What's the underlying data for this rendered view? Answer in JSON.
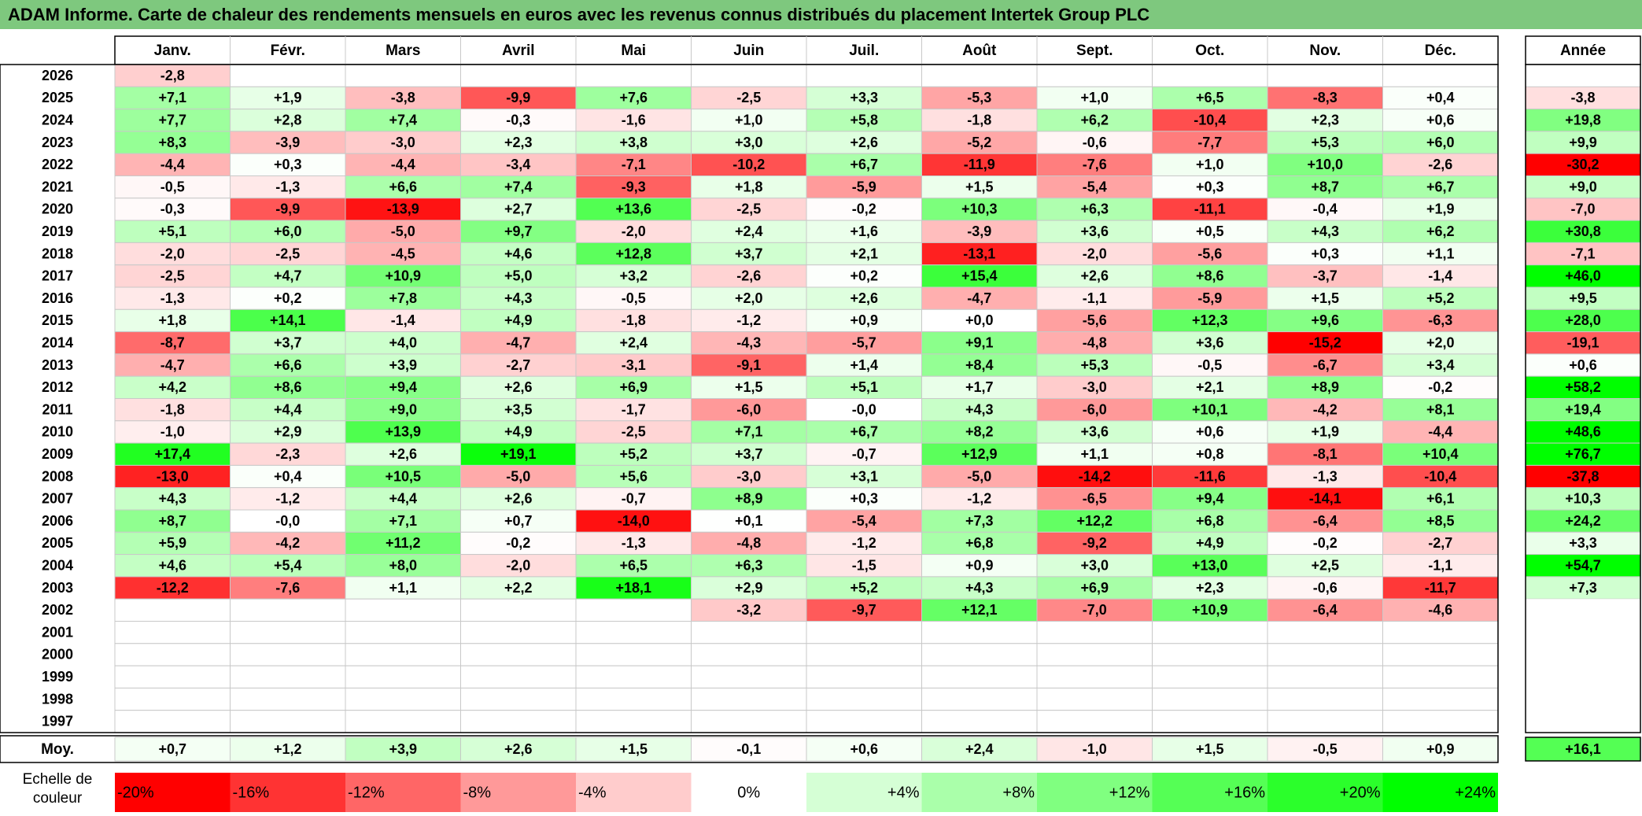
{
  "title": "ADAM Informe. Carte de chaleur des rendements mensuels en euros avec les revenus connus distribués du placement Intertek Group PLC",
  "chart_data": {
    "type": "heatmap",
    "title": "ADAM Informe. Carte de chaleur des rendements mensuels en euros avec les revenus connus distribués du placement Intertek Group PLC",
    "months": [
      "Janv.",
      "Févr.",
      "Mars",
      "Avril",
      "Mai",
      "Juin",
      "Juil.",
      "Août",
      "Sept.",
      "Oct.",
      "Nov.",
      "Déc."
    ],
    "year_header": "Année",
    "rows": [
      {
        "year": "2026",
        "values": [
          "-2,8",
          "",
          "",
          "",
          "",
          "",
          "",
          "",
          "",
          "",
          "",
          ""
        ],
        "annual": ""
      },
      {
        "year": "2025",
        "values": [
          "+7,1",
          "+1,9",
          "-3,8",
          "-9,9",
          "+7,6",
          "-2,5",
          "+3,3",
          "-5,3",
          "+1,0",
          "+6,5",
          "-8,3",
          "+0,4"
        ],
        "annual": "-3,8"
      },
      {
        "year": "2024",
        "values": [
          "+7,7",
          "+2,8",
          "+7,4",
          "-0,3",
          "-1,6",
          "+1,0",
          "+5,8",
          "-1,8",
          "+6,2",
          "-10,4",
          "+2,3",
          "+0,6"
        ],
        "annual": "+19,8"
      },
      {
        "year": "2023",
        "values": [
          "+8,3",
          "-3,9",
          "-3,0",
          "+2,3",
          "+3,8",
          "+3,0",
          "+2,6",
          "-5,2",
          "-0,6",
          "-7,7",
          "+5,3",
          "+6,0"
        ],
        "annual": "+9,9"
      },
      {
        "year": "2022",
        "values": [
          "-4,4",
          "+0,3",
          "-4,4",
          "-3,4",
          "-7,1",
          "-10,2",
          "+6,7",
          "-11,9",
          "-7,6",
          "+1,0",
          "+10,0",
          "-2,6"
        ],
        "annual": "-30,2"
      },
      {
        "year": "2021",
        "values": [
          "-0,5",
          "-1,3",
          "+6,6",
          "+7,4",
          "-9,3",
          "+1,8",
          "-5,9",
          "+1,5",
          "-5,4",
          "+0,3",
          "+8,7",
          "+6,7"
        ],
        "annual": "+9,0"
      },
      {
        "year": "2020",
        "values": [
          "-0,3",
          "-9,9",
          "-13,9",
          "+2,7",
          "+13,6",
          "-2,5",
          "-0,2",
          "+10,3",
          "+6,3",
          "-11,1",
          "-0,4",
          "+1,9"
        ],
        "annual": "-7,0"
      },
      {
        "year": "2019",
        "values": [
          "+5,1",
          "+6,0",
          "-5,0",
          "+9,7",
          "-2,0",
          "+2,4",
          "+1,6",
          "-3,9",
          "+3,6",
          "+0,5",
          "+4,3",
          "+6,2"
        ],
        "annual": "+30,8"
      },
      {
        "year": "2018",
        "values": [
          "-2,0",
          "-2,5",
          "-4,5",
          "+4,6",
          "+12,8",
          "+3,7",
          "+2,1",
          "-13,1",
          "-2,0",
          "-5,6",
          "+0,3",
          "+1,1"
        ],
        "annual": "-7,1"
      },
      {
        "year": "2017",
        "values": [
          "-2,5",
          "+4,7",
          "+10,9",
          "+5,0",
          "+3,2",
          "-2,6",
          "+0,2",
          "+15,4",
          "+2,6",
          "+8,6",
          "-3,7",
          "-1,4"
        ],
        "annual": "+46,0"
      },
      {
        "year": "2016",
        "values": [
          "-1,3",
          "+0,2",
          "+7,8",
          "+4,3",
          "-0,5",
          "+2,0",
          "+2,6",
          "-4,7",
          "-1,1",
          "-5,9",
          "+1,5",
          "+5,2"
        ],
        "annual": "+9,5"
      },
      {
        "year": "2015",
        "values": [
          "+1,8",
          "+14,1",
          "-1,4",
          "+4,9",
          "-1,8",
          "-1,2",
          "+0,9",
          "+0,0",
          "-5,6",
          "+12,3",
          "+9,6",
          "-6,3"
        ],
        "annual": "+28,0"
      },
      {
        "year": "2014",
        "values": [
          "-8,7",
          "+3,7",
          "+4,0",
          "-4,7",
          "+2,4",
          "-4,3",
          "-5,7",
          "+9,1",
          "-4,8",
          "+3,6",
          "-15,2",
          "+2,0"
        ],
        "annual": "-19,1"
      },
      {
        "year": "2013",
        "values": [
          "-4,7",
          "+6,6",
          "+3,9",
          "-2,7",
          "-3,1",
          "-9,1",
          "+1,4",
          "+8,4",
          "+5,3",
          "-0,5",
          "-6,7",
          "+3,4"
        ],
        "annual": "+0,6"
      },
      {
        "year": "2012",
        "values": [
          "+4,2",
          "+8,6",
          "+9,4",
          "+2,6",
          "+6,9",
          "+1,5",
          "+5,1",
          "+1,7",
          "-3,0",
          "+2,1",
          "+8,9",
          "-0,2"
        ],
        "annual": "+58,2"
      },
      {
        "year": "2011",
        "values": [
          "-1,8",
          "+4,4",
          "+9,0",
          "+3,5",
          "-1,7",
          "-6,0",
          "-0,0",
          "+4,3",
          "-6,0",
          "+10,1",
          "-4,2",
          "+8,1"
        ],
        "annual": "+19,4"
      },
      {
        "year": "2010",
        "values": [
          "-1,0",
          "+2,9",
          "+13,9",
          "+4,9",
          "-2,5",
          "+7,1",
          "+6,7",
          "+8,2",
          "+3,6",
          "+0,6",
          "+1,9",
          "-4,4"
        ],
        "annual": "+48,6"
      },
      {
        "year": "2009",
        "values": [
          "+17,4",
          "-2,3",
          "+2,6",
          "+19,1",
          "+5,2",
          "+3,7",
          "-0,7",
          "+12,9",
          "+1,1",
          "+0,8",
          "-8,1",
          "+10,4"
        ],
        "annual": "+76,7"
      },
      {
        "year": "2008",
        "values": [
          "-13,0",
          "+0,4",
          "+10,5",
          "-5,0",
          "+5,6",
          "-3,0",
          "+3,1",
          "-5,0",
          "-14,2",
          "-11,6",
          "-1,3",
          "-10,4"
        ],
        "annual": "-37,8"
      },
      {
        "year": "2007",
        "values": [
          "+4,3",
          "-1,2",
          "+4,4",
          "+2,6",
          "-0,7",
          "+8,9",
          "+0,3",
          "-1,2",
          "-6,5",
          "+9,4",
          "-14,1",
          "+6,1"
        ],
        "annual": "+10,3"
      },
      {
        "year": "2006",
        "values": [
          "+8,7",
          "-0,0",
          "+7,1",
          "+0,7",
          "-14,0",
          "+0,1",
          "-5,4",
          "+7,3",
          "+12,2",
          "+6,8",
          "-6,4",
          "+8,5"
        ],
        "annual": "+24,2"
      },
      {
        "year": "2005",
        "values": [
          "+5,9",
          "-4,2",
          "+11,2",
          "-0,2",
          "-1,3",
          "-4,8",
          "-1,2",
          "+6,8",
          "-9,2",
          "+4,9",
          "-0,2",
          "-2,7"
        ],
        "annual": "+3,3"
      },
      {
        "year": "2004",
        "values": [
          "+4,6",
          "+5,4",
          "+8,0",
          "-2,0",
          "+6,5",
          "+6,3",
          "-1,5",
          "+0,9",
          "+3,0",
          "+13,0",
          "+2,5",
          "-1,1"
        ],
        "annual": "+54,7"
      },
      {
        "year": "2003",
        "values": [
          "-12,2",
          "-7,6",
          "+1,1",
          "+2,2",
          "+18,1",
          "+2,9",
          "+5,2",
          "+4,3",
          "+6,9",
          "+2,3",
          "-0,6",
          "-11,7"
        ],
        "annual": "+7,3"
      },
      {
        "year": "2002",
        "values": [
          "",
          "",
          "",
          "",
          "",
          "-3,2",
          "-9,7",
          "+12,1",
          "-7,0",
          "+10,9",
          "-6,4",
          "-4,6"
        ],
        "annual": ""
      },
      {
        "year": "2001",
        "values": [
          "",
          "",
          "",
          "",
          "",
          "",
          "",
          "",
          "",
          "",
          "",
          ""
        ],
        "annual": ""
      },
      {
        "year": "2000",
        "values": [
          "",
          "",
          "",
          "",
          "",
          "",
          "",
          "",
          "",
          "",
          "",
          ""
        ],
        "annual": ""
      },
      {
        "year": "1999",
        "values": [
          "",
          "",
          "",
          "",
          "",
          "",
          "",
          "",
          "",
          "",
          "",
          ""
        ],
        "annual": ""
      },
      {
        "year": "1998",
        "values": [
          "",
          "",
          "",
          "",
          "",
          "",
          "",
          "",
          "",
          "",
          "",
          ""
        ],
        "annual": ""
      },
      {
        "year": "1997",
        "values": [
          "",
          "",
          "",
          "",
          "",
          "",
          "",
          "",
          "",
          "",
          "",
          ""
        ],
        "annual": ""
      }
    ],
    "average": {
      "label": "Moy.",
      "values": [
        "+0,7",
        "+1,2",
        "+3,9",
        "+2,6",
        "+1,5",
        "-0,1",
        "+0,6",
        "+2,4",
        "-1,0",
        "+1,5",
        "-0,5",
        "+0,9"
      ],
      "annual": "+16,1"
    },
    "scale": {
      "label": "Echelle de couleur",
      "stops": [
        {
          "text": "-20%",
          "value": -20
        },
        {
          "text": "-16%",
          "value": -16
        },
        {
          "text": "-12%",
          "value": -12
        },
        {
          "text": "-8%",
          "value": -8
        },
        {
          "text": "-4%",
          "value": -4
        },
        {
          "text": "0%",
          "value": 0
        },
        {
          "text": "+4%",
          "value": 4
        },
        {
          "text": "+8%",
          "value": 8
        },
        {
          "text": "+12%",
          "value": 12
        },
        {
          "text": "+16%",
          "value": 16
        },
        {
          "text": "+20%",
          "value": 20
        },
        {
          "text": "+24%",
          "value": 24
        }
      ]
    },
    "colors": {
      "negative_max": "#ff0000",
      "neutral": "#ffffff",
      "positive_max": "#00ff00",
      "title_background": "#7ec87e"
    }
  }
}
